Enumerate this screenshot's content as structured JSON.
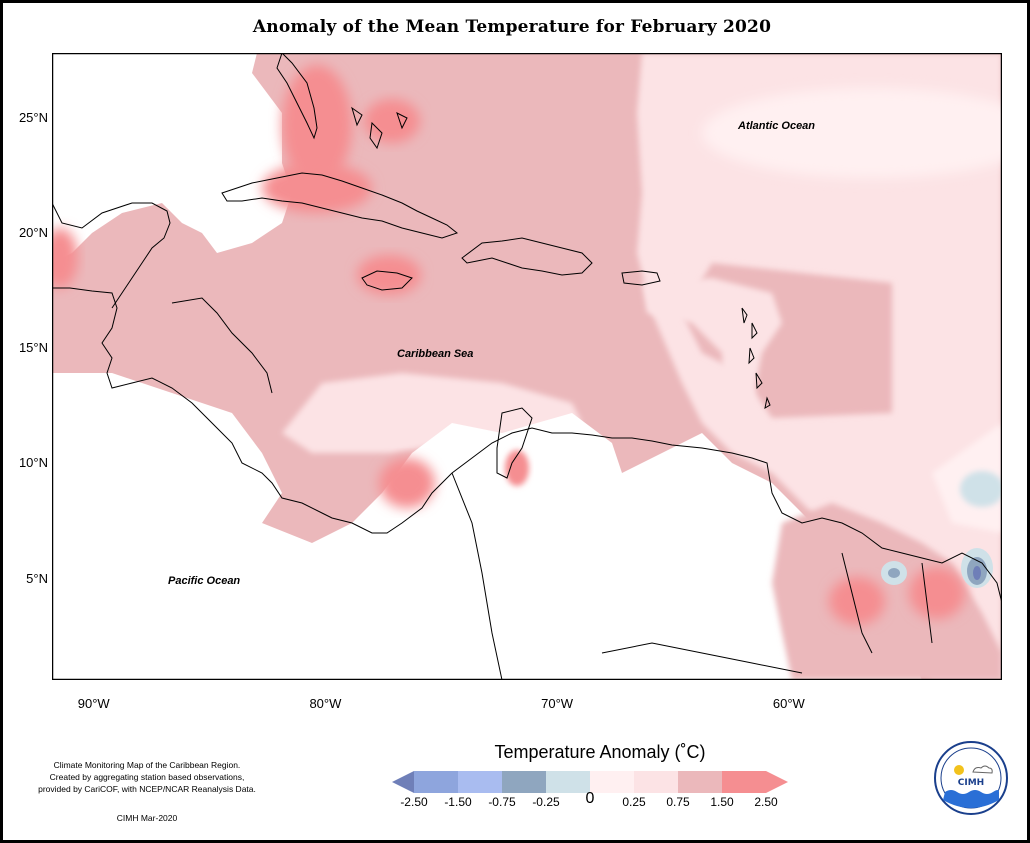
{
  "title": "Anomaly of the Mean Temperature for February 2020",
  "map": {
    "latitude_ticks": [
      {
        "label": "25°N",
        "lat": 25
      },
      {
        "label": "20°N",
        "lat": 20
      },
      {
        "label": "15°N",
        "lat": 15
      },
      {
        "label": "10°N",
        "lat": 10
      },
      {
        "label": "5°N",
        "lat": 5
      }
    ],
    "longitude_ticks": [
      {
        "label": "90°W",
        "lon": -90
      },
      {
        "label": "80°W",
        "lon": -80
      },
      {
        "label": "70°W",
        "lon": -70
      },
      {
        "label": "60°W",
        "lon": -60
      }
    ],
    "labels": {
      "atlantic": "Atlantic Ocean",
      "caribbean": "Caribbean Sea",
      "pacific": "Pacific Ocean"
    },
    "background_anomaly_color": "#ebb8bb",
    "land_color": "#ffffff"
  },
  "legend": {
    "title": "Temperature Anomaly (˚C)",
    "tick_labels": [
      "-2.50",
      "-1.50",
      "-0.75",
      "-0.25",
      "0",
      "0.25",
      "0.75",
      "1.50",
      "2.50"
    ],
    "colors": [
      "#6f7fb8",
      "#8ea5dd",
      "#a9bcf0",
      "#8fa6bf",
      "#cfe1e8",
      "#fff0f1",
      "#fce3e5",
      "#ebb8bb",
      "#f58e91",
      "#f58e91"
    ]
  },
  "credits": {
    "lines": [
      "Climate Monitoring Map of the Caribbean Region.",
      "Created by aggregating station based observations,",
      "provided by CariCOF, with NCEP/NCAR Reanalysis Data."
    ],
    "signature": "CIMH Mar-2020"
  },
  "logo": {
    "text": "CIMH"
  }
}
